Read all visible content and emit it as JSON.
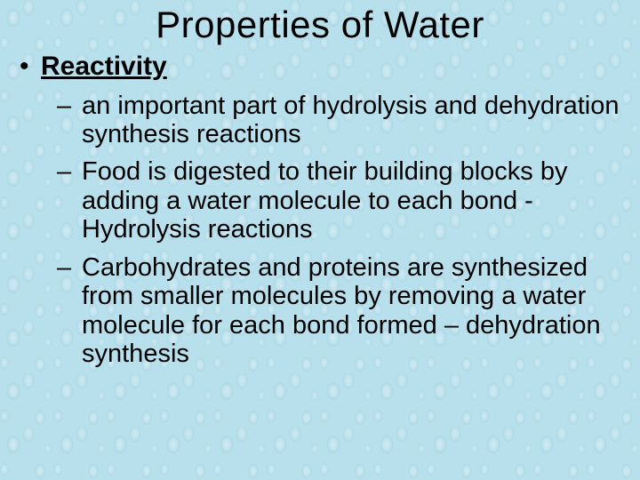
{
  "slide": {
    "background_color": "#b8e0ec",
    "droplet_highlight": "rgba(255,255,255,0.35)",
    "droplet_shadow": "rgba(140,190,210,0.25)",
    "text_color": "#000000",
    "font_family": "Comic Sans MS",
    "title": {
      "text": "Properties of Water",
      "fontsize": 42,
      "align": "center",
      "weight": "normal"
    },
    "bullets": [
      {
        "level": 1,
        "text": "Reactivity",
        "bold": true,
        "underline": true,
        "fontsize": 30,
        "marker": "•"
      },
      {
        "level": 2,
        "text": "an important part of hydrolysis and dehydration synthesis reactions",
        "fontsize": 29,
        "marker": "–"
      },
      {
        "level": 2,
        "text": "Food is digested to their building blocks by adding a water molecule to each bond - Hydrolysis reactions",
        "fontsize": 29,
        "marker": "–"
      },
      {
        "level": 2,
        "text": "Carbohydrates and proteins are synthesized from smaller molecules by removing a water molecule for each bond formed – dehydration synthesis",
        "fontsize": 29,
        "marker": "–"
      }
    ]
  }
}
